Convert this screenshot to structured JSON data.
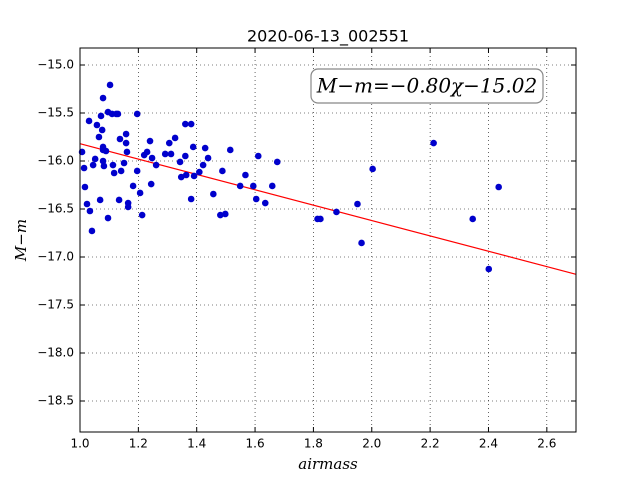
{
  "chart_data": {
    "type": "scatter",
    "title": "2020-06-13_002551",
    "xlabel": "airmass",
    "ylabel": "M−m",
    "annotation": "M−m=−0.80χ−15.02",
    "series": [
      {
        "color": "#0000cc",
        "x": [
          1.007,
          1.014,
          1.017,
          1.024,
          1.031,
          1.034,
          1.041,
          1.045,
          1.052,
          1.058,
          1.065,
          1.069,
          1.072,
          1.076,
          1.079,
          1.079,
          1.079,
          1.079,
          1.082,
          1.089,
          1.096,
          1.096,
          1.103,
          1.11,
          1.113,
          1.117,
          1.124,
          1.13,
          1.137,
          1.134,
          1.141,
          1.151,
          1.158,
          1.158,
          1.161,
          1.165,
          1.165,
          1.182,
          1.196,
          1.196,
          1.206,
          1.213,
          1.22,
          1.23,
          1.24,
          1.244,
          1.247,
          1.261,
          1.292,
          1.306,
          1.312,
          1.326,
          1.343,
          1.347,
          1.361,
          1.361,
          1.364,
          1.381,
          1.381,
          1.388,
          1.391,
          1.409,
          1.422,
          1.429,
          1.439,
          1.457,
          1.481,
          1.488,
          1.498,
          1.515,
          1.549,
          1.567,
          1.594,
          1.604,
          1.611,
          1.635,
          1.659,
          1.676,
          1.814,
          1.824,
          1.879,
          1.951,
          1.965,
          2.003,
          2.212,
          2.346,
          2.401,
          2.435
        ],
        "values": [
          -15.906,
          -16.073,
          -16.271,
          -16.448,
          -15.583,
          -16.521,
          -16.729,
          -16.042,
          -15.979,
          -15.625,
          -15.75,
          -16.406,
          -15.531,
          -15.677,
          -15.344,
          -15.854,
          -16.0,
          -15.885,
          -16.052,
          -15.896,
          -15.49,
          -16.594,
          -15.208,
          -15.51,
          -16.042,
          -16.125,
          -15.51,
          -15.51,
          -15.771,
          -16.406,
          -16.104,
          -16.021,
          -15.719,
          -15.813,
          -15.906,
          -16.438,
          -16.479,
          -16.26,
          -15.51,
          -16.104,
          -16.333,
          -16.563,
          -15.938,
          -15.906,
          -15.792,
          -16.24,
          -15.969,
          -16.042,
          -15.927,
          -15.813,
          -15.927,
          -15.76,
          -16.01,
          -16.167,
          -15.615,
          -15.948,
          -16.146,
          -15.615,
          -16.396,
          -15.854,
          -16.156,
          -16.115,
          -16.042,
          -15.865,
          -15.969,
          -16.344,
          -16.563,
          -16.104,
          -16.552,
          -15.885,
          -16.26,
          -16.146,
          -16.26,
          -16.396,
          -15.948,
          -16.438,
          -16.26,
          -16.01,
          -16.604,
          -16.604,
          -16.531,
          -16.448,
          -16.854,
          -16.083,
          -15.813,
          -16.604,
          -17.125,
          -16.271
        ]
      }
    ],
    "fit": {
      "color": "#ff0000",
      "x": [
        1.0,
        2.7
      ],
      "values": [
        -15.82,
        -17.18
      ]
    },
    "xlim": [
      1.0,
      2.7
    ],
    "ylim": [
      -18.823,
      -14.823
    ],
    "xticks": [
      {
        "value": 1.0,
        "label": "1.0"
      },
      1.2,
      1.4,
      1.6,
      1.8,
      {
        "value": 2.0,
        "label": "2.0"
      },
      2.2,
      2.4,
      2.6
    ],
    "yticks": [
      {
        "value": -15.0,
        "label": "−15.0"
      },
      {
        "value": -15.5,
        "label": "−15.5"
      },
      {
        "value": -16.0,
        "label": "−16.0"
      },
      {
        "value": -16.5,
        "label": "−16.5"
      },
      {
        "value": -17.0,
        "label": "−17.0"
      },
      {
        "value": -17.5,
        "label": "−17.5"
      },
      {
        "value": -18.0,
        "label": "−18.0"
      },
      {
        "value": -18.5,
        "label": "−18.5"
      }
    ],
    "grid": true
  }
}
